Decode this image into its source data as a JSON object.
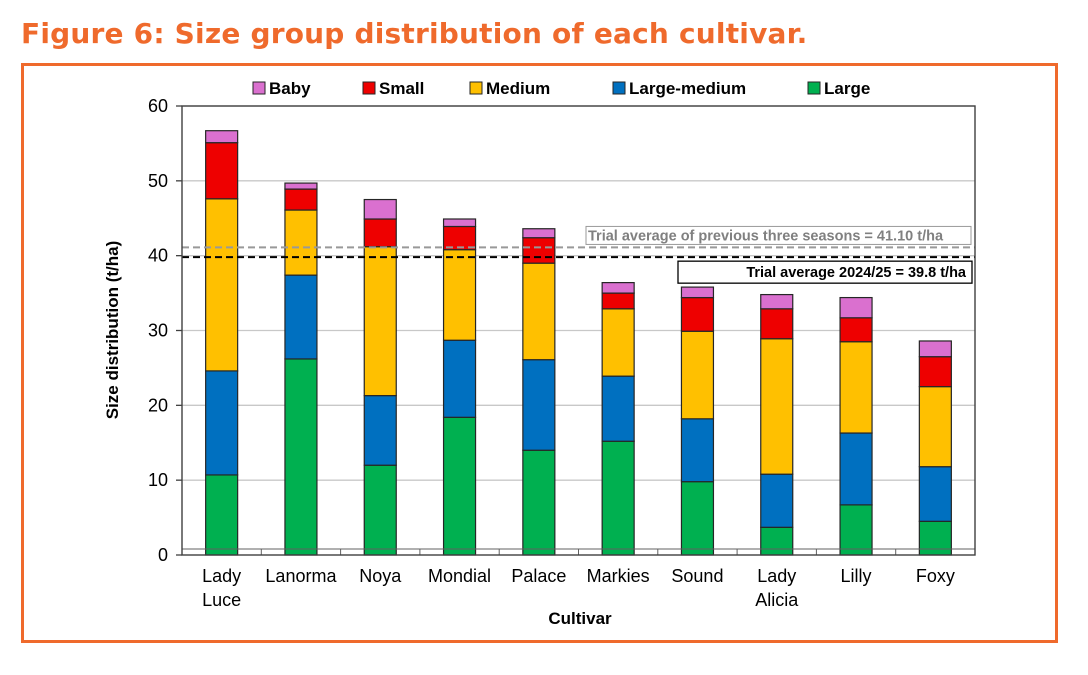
{
  "figure": {
    "title": "Figure 6: Size group distribution of each cultivar.",
    "accent_color": "#EF6A2C"
  },
  "chart_data": {
    "type": "bar",
    "stacked": true,
    "title": "",
    "xlabel": "Cultivar",
    "ylabel": "Size distribution (t/ha)",
    "ylim": [
      0,
      60
    ],
    "yticks": [
      0,
      10,
      20,
      30,
      40,
      50,
      60
    ],
    "grid": true,
    "legend_position": "top",
    "categories": [
      [
        "Lady",
        "Luce"
      ],
      [
        "Lanorma"
      ],
      [
        "Noya"
      ],
      [
        "Mondial"
      ],
      [
        "Palace"
      ],
      [
        "Markies"
      ],
      [
        "Sound"
      ],
      [
        "Lady",
        "Alicia"
      ],
      [
        "Lilly"
      ],
      [
        "Foxy"
      ]
    ],
    "series": [
      {
        "name": "Large",
        "color": "#00B050",
        "values": [
          10.7,
          26.2,
          12.0,
          18.4,
          14.0,
          15.2,
          9.8,
          3.7,
          6.7,
          4.5
        ]
      },
      {
        "name": "Large-medium",
        "color": "#0070C0",
        "values": [
          13.9,
          11.2,
          9.3,
          10.3,
          12.1,
          8.7,
          8.4,
          7.1,
          9.6,
          7.3
        ]
      },
      {
        "name": "Medium",
        "color": "#FFC000",
        "values": [
          23.0,
          8.7,
          19.9,
          12.1,
          12.9,
          9.0,
          11.7,
          18.1,
          12.2,
          10.7
        ]
      },
      {
        "name": "Small",
        "color": "#EE0000",
        "values": [
          7.5,
          2.8,
          3.7,
          3.1,
          3.4,
          2.1,
          4.5,
          4.0,
          3.2,
          4.0
        ]
      },
      {
        "name": "Baby",
        "color": "#DA70CF",
        "values": [
          1.6,
          0.8,
          2.6,
          1.0,
          1.2,
          1.4,
          1.4,
          1.9,
          2.7,
          2.1
        ]
      }
    ],
    "legend_order": [
      "Baby",
      "Small",
      "Medium",
      "Large-medium",
      "Large"
    ],
    "reference_lines": [
      {
        "name": "previous-three-seasons-average",
        "value": 41.1,
        "label": "Trial average of previous three seasons = 41.10 t/ha",
        "color": "#999999",
        "style": "dashed"
      },
      {
        "name": "current-season-average",
        "value": 39.8,
        "label": "Trial average 2024/25 = 39.8  t/ha",
        "color": "#000000",
        "style": "dashed"
      }
    ]
  }
}
